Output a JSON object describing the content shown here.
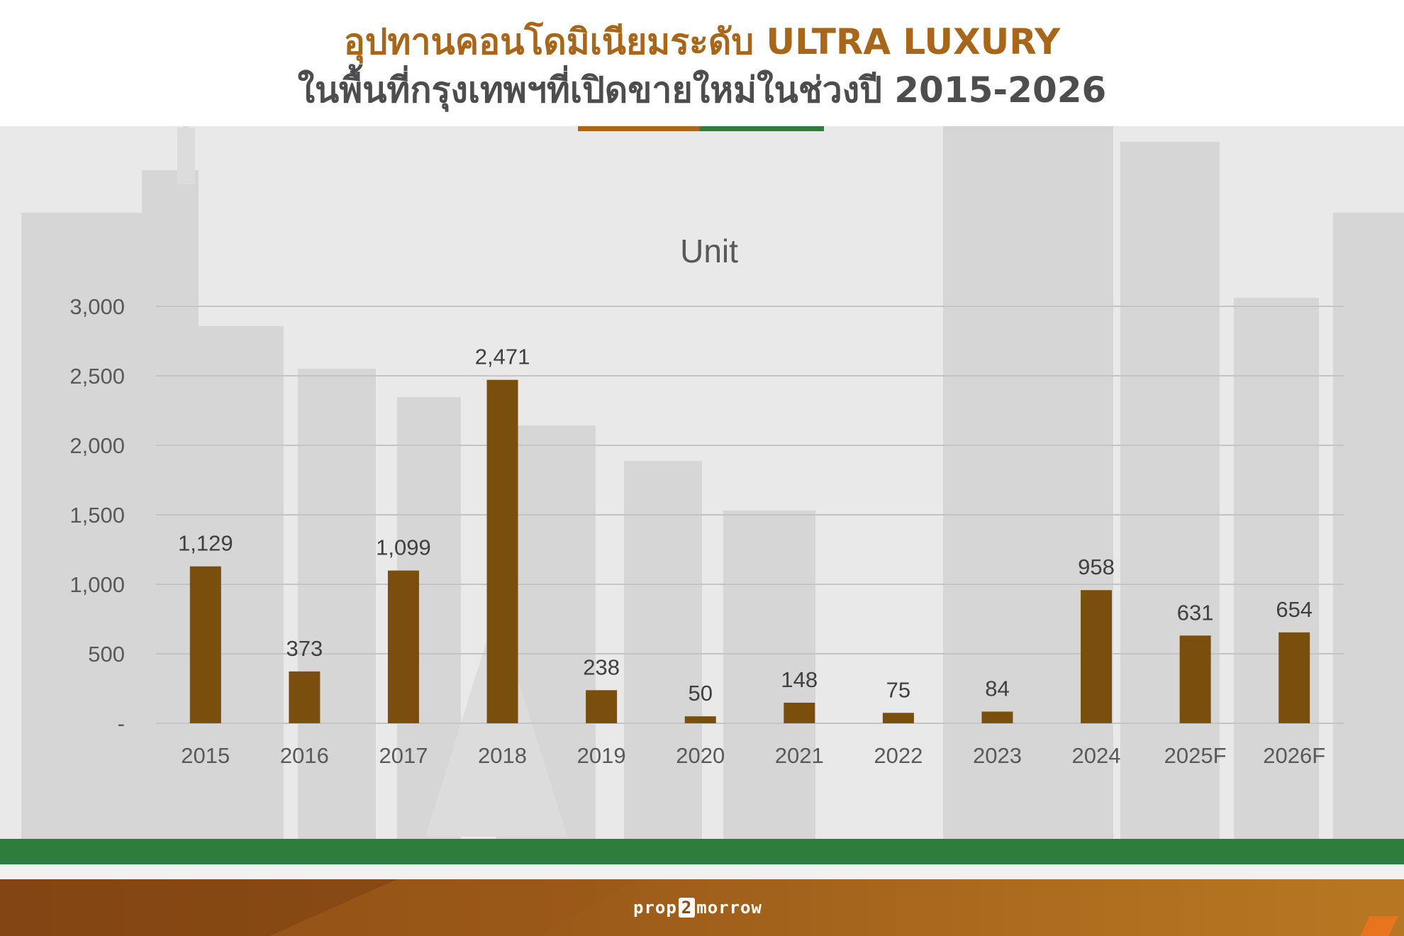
{
  "header": {
    "title_line1": "อุปทานคอนโดมิเนียมระดับ ULTRA LUXURY",
    "title_line2": "ในพื้นที่กรุงเทพฯที่เปิดขายใหม่ในช่วงปี 2015-2026"
  },
  "colors": {
    "accent_brown": "#a8661a",
    "accent_green": "#2e7d3c",
    "bar_color": "#7a4f0e"
  },
  "chart_data": {
    "type": "bar",
    "title": "Unit",
    "categories": [
      "2015",
      "2016",
      "2017",
      "2018",
      "2019",
      "2020",
      "2021",
      "2022",
      "2023",
      "2024",
      "2025F",
      "2026F"
    ],
    "values": [
      1129,
      373,
      1099,
      2471,
      238,
      50,
      148,
      75,
      84,
      958,
      631,
      654
    ],
    "value_labels": [
      "1,129",
      "373",
      "1,099",
      "2,471",
      "238",
      "50",
      "148",
      "75",
      "84",
      "958",
      "631",
      "654"
    ],
    "yticks": [
      0,
      500,
      1000,
      1500,
      2000,
      2500,
      3000
    ],
    "ytick_labels": [
      "-",
      "500",
      "1,000",
      "1,500",
      "2,000",
      "2,500",
      "3,000"
    ],
    "ylim": [
      0,
      3000
    ],
    "xlabel": "",
    "ylabel": "",
    "grid": true
  },
  "footer": {
    "logo_part1": "prop",
    "logo_part2": "2",
    "logo_part3": "morrow"
  }
}
